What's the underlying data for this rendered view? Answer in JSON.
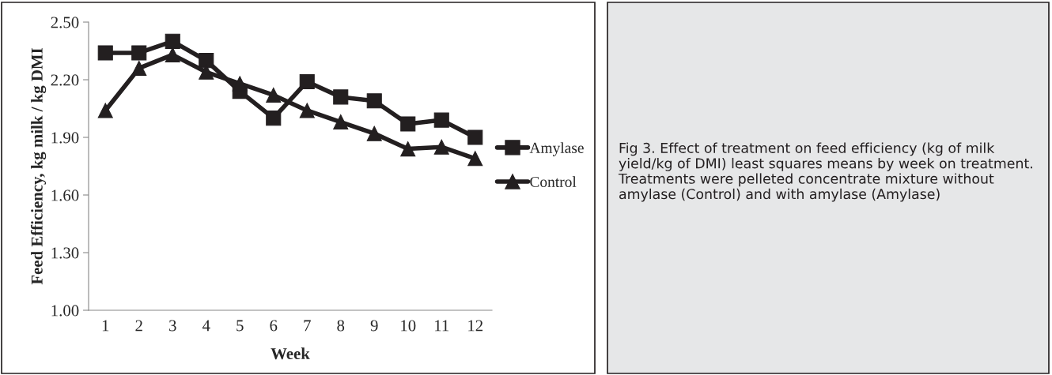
{
  "chart_data": {
    "type": "line",
    "xlabel": "Week",
    "ylabel": "Feed Efficiency, kg milk / kg DMI",
    "categories": [
      "1",
      "2",
      "3",
      "4",
      "5",
      "6",
      "7",
      "8",
      "9",
      "10",
      "11",
      "12"
    ],
    "series": [
      {
        "name": "Amylase",
        "color": "#231f20",
        "marker": "square",
        "values": [
          2.34,
          2.34,
          2.4,
          2.3,
          2.14,
          2.0,
          2.19,
          2.11,
          2.09,
          1.97,
          1.99,
          1.9
        ]
      },
      {
        "name": "Control",
        "color": "#231f20",
        "marker": "triangle",
        "values": [
          2.04,
          2.26,
          2.33,
          2.24,
          2.18,
          2.12,
          2.04,
          1.98,
          1.92,
          1.84,
          1.85,
          1.79
        ]
      }
    ],
    "ylim": [
      1.0,
      2.5
    ],
    "yticks": [
      {
        "value": 1.0,
        "label": "1.00"
      },
      {
        "value": 1.3,
        "label": "1.30"
      },
      {
        "value": 1.6,
        "label": "1.60"
      },
      {
        "value": 1.9,
        "label": "1.90"
      },
      {
        "value": 2.2,
        "label": "2.20"
      },
      {
        "value": 2.5,
        "label": "2.50"
      }
    ],
    "grid": false,
    "legend": "right",
    "line_style": "solid",
    "annotations": [
      "Fig 3. Effect of treatment on feed efficiency (kg of milk yield/kg of DMI) least squares means by week on treatment. Treatments were pelleted concentrate mixture without amylase (Control) and with amylase (Amylase)"
    ]
  }
}
